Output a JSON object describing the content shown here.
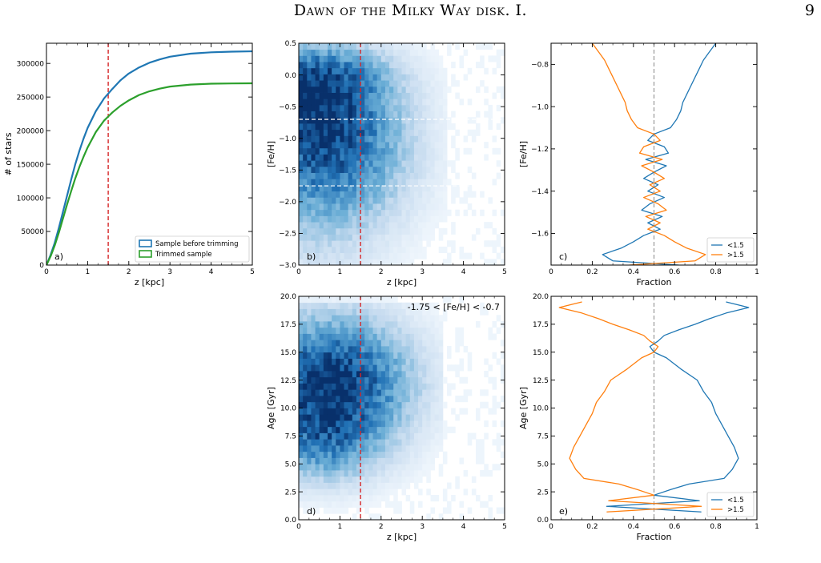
{
  "header": {
    "title": "Dawn of the Milky Way disk. I.",
    "page_number": "9"
  },
  "chart_data": [
    {
      "id": "a",
      "type": "line",
      "panel_label": "a)",
      "xlabel": "z [kpc]",
      "ylabel": "# of stars",
      "xlim": [
        0,
        5
      ],
      "ylim": [
        0,
        330000
      ],
      "xticks": [
        0,
        1,
        2,
        3,
        4,
        5
      ],
      "yticks": [
        0,
        50000,
        100000,
        150000,
        200000,
        250000,
        300000
      ],
      "ytick_labels": [
        "0",
        "50000",
        "100000",
        "150000",
        "200000",
        "250000",
        "300000"
      ],
      "legend_position": "lower-right",
      "series": [
        {
          "name": "Sample before trimming",
          "color": "#1f77b4",
          "x": [
            0,
            0.1,
            0.2,
            0.3,
            0.4,
            0.5,
            0.6,
            0.7,
            0.8,
            0.9,
            1.0,
            1.2,
            1.4,
            1.5,
            1.6,
            1.8,
            2.0,
            2.25,
            2.5,
            2.75,
            3.0,
            3.5,
            4.0,
            4.5,
            5.0
          ],
          "y": [
            0,
            15000,
            33000,
            55000,
            79000,
            103000,
            127000,
            150000,
            170000,
            188000,
            204000,
            229000,
            248000,
            255000,
            262000,
            275000,
            285000,
            294000,
            301000,
            306000,
            310000,
            314500,
            316500,
            317500,
            318000
          ]
        },
        {
          "name": "Trimmed sample",
          "color": "#2ca02c",
          "x": [
            0,
            0.1,
            0.2,
            0.3,
            0.4,
            0.5,
            0.6,
            0.7,
            0.8,
            0.9,
            1.0,
            1.2,
            1.4,
            1.5,
            1.6,
            1.8,
            2.0,
            2.25,
            2.5,
            2.75,
            3.0,
            3.5,
            4.0,
            4.5,
            5.0
          ],
          "y": [
            0,
            13000,
            29000,
            48000,
            69000,
            90000,
            110000,
            129000,
            146000,
            161000,
            175000,
            198000,
            215000,
            221000,
            227000,
            237000,
            245000,
            253000,
            258500,
            262500,
            265500,
            268500,
            269800,
            270200,
            270400
          ]
        }
      ],
      "vlines": [
        {
          "x": 1.5,
          "color": "#d62728",
          "style": "dashed"
        }
      ]
    },
    {
      "id": "b",
      "type": "heatmap",
      "panel_label": "b)",
      "xlabel": "z [kpc]",
      "ylabel": "[Fe/H]",
      "xlim": [
        0,
        5
      ],
      "ylim": [
        -3.0,
        0.5
      ],
      "xticks": [
        0,
        1,
        2,
        3,
        4,
        5
      ],
      "yticks": [
        -3.0,
        -2.5,
        -2.0,
        -1.5,
        -1.0,
        -0.5,
        0.0,
        0.5
      ],
      "ytick_labels": [
        "−3.0",
        "−2.5",
        "−2.0",
        "−1.5",
        "−1.0",
        "−0.5",
        "0.0",
        "0.5"
      ],
      "colormap": "Blues",
      "density_model": {
        "peak_x": 0.35,
        "peak_y": -0.15,
        "note_x_extent": 3.6
      },
      "vlines": [
        {
          "x": 1.5,
          "color": "#d62728",
          "style": "dashed"
        }
      ],
      "hlines": [
        {
          "y": -0.7,
          "color": "#ffffff",
          "style": "dashed"
        },
        {
          "y": -1.75,
          "color": "#ffffff",
          "style": "dashed"
        }
      ]
    },
    {
      "id": "c",
      "type": "line",
      "panel_label": "c)",
      "xlabel": "Fraction",
      "ylabel": "[Fe/H]",
      "xlim": [
        0.0,
        1.0
      ],
      "ylim": [
        -1.75,
        -0.7
      ],
      "xticks": [
        0.0,
        0.2,
        0.4,
        0.6,
        0.8,
        1.0
      ],
      "yticks": [
        -1.6,
        -1.4,
        -1.2,
        -1.0,
        -0.8
      ],
      "ytick_labels": [
        "−1.6",
        "−1.4",
        "−1.2",
        "−1.0",
        "−0.8"
      ],
      "legend_position": "lower-right",
      "series": [
        {
          "name": "<1.5",
          "color": "#1f77b4",
          "y": [
            -0.7,
            -0.74,
            -0.78,
            -0.82,
            -0.86,
            -0.9,
            -0.94,
            -0.98,
            -1.02,
            -1.06,
            -1.1,
            -1.13,
            -1.16,
            -1.19,
            -1.22,
            -1.25,
            -1.28,
            -1.31,
            -1.34,
            -1.37,
            -1.4,
            -1.43,
            -1.46,
            -1.49,
            -1.52,
            -1.55,
            -1.58,
            -1.61,
            -1.64,
            -1.67,
            -1.7,
            -1.73,
            -1.75
          ],
          "values": [
            0.8,
            0.77,
            0.74,
            0.72,
            0.7,
            0.68,
            0.66,
            0.64,
            0.63,
            0.61,
            0.58,
            0.5,
            0.47,
            0.55,
            0.57,
            0.46,
            0.56,
            0.5,
            0.45,
            0.52,
            0.47,
            0.55,
            0.48,
            0.44,
            0.54,
            0.47,
            0.53,
            0.45,
            0.4,
            0.34,
            0.25,
            0.3,
            0.62
          ]
        },
        {
          "name": ">1.5",
          "color": "#ff7f0e",
          "y": [
            -0.7,
            -0.74,
            -0.78,
            -0.82,
            -0.86,
            -0.9,
            -0.94,
            -0.98,
            -1.02,
            -1.06,
            -1.1,
            -1.13,
            -1.16,
            -1.19,
            -1.22,
            -1.25,
            -1.28,
            -1.31,
            -1.34,
            -1.37,
            -1.4,
            -1.43,
            -1.46,
            -1.49,
            -1.52,
            -1.55,
            -1.58,
            -1.61,
            -1.64,
            -1.67,
            -1.7,
            -1.73,
            -1.75
          ],
          "values": [
            0.2,
            0.23,
            0.26,
            0.28,
            0.3,
            0.32,
            0.34,
            0.36,
            0.37,
            0.39,
            0.42,
            0.5,
            0.53,
            0.45,
            0.43,
            0.54,
            0.44,
            0.5,
            0.55,
            0.48,
            0.53,
            0.45,
            0.52,
            0.56,
            0.46,
            0.53,
            0.47,
            0.55,
            0.6,
            0.66,
            0.75,
            0.7,
            0.38
          ]
        }
      ],
      "vlines": [
        {
          "x": 0.5,
          "color": "#999999",
          "style": "dashed"
        }
      ]
    },
    {
      "id": "d",
      "type": "heatmap",
      "panel_label": "d)",
      "annotation": "-1.75 < [Fe/H] < -0.7",
      "xlabel": "z [kpc]",
      "ylabel": "Age [Gyr]",
      "xlim": [
        0,
        5
      ],
      "ylim": [
        0.0,
        20.0
      ],
      "xticks": [
        0,
        1,
        2,
        3,
        4,
        5
      ],
      "yticks": [
        0.0,
        2.5,
        5.0,
        7.5,
        10.0,
        12.5,
        15.0,
        17.5,
        20.0
      ],
      "ytick_labels": [
        "0.0",
        "2.5",
        "5.0",
        "7.5",
        "10.0",
        "12.5",
        "15.0",
        "17.5",
        "20.0"
      ],
      "colormap": "Blues",
      "density_model": {
        "peak_x": 0.8,
        "peak_y": 12.3
      },
      "vlines": [
        {
          "x": 1.5,
          "color": "#d62728",
          "style": "dashed"
        }
      ]
    },
    {
      "id": "e",
      "type": "line",
      "panel_label": "e)",
      "xlabel": "Fraction",
      "ylabel": "Age [Gyr]",
      "xlim": [
        0.0,
        1.0
      ],
      "ylim": [
        0.0,
        20.0
      ],
      "xticks": [
        0.0,
        0.2,
        0.4,
        0.6,
        0.8,
        1.0
      ],
      "yticks": [
        0.0,
        2.5,
        5.0,
        7.5,
        10.0,
        12.5,
        15.0,
        17.5,
        20.0
      ],
      "ytick_labels": [
        "0.0",
        "2.5",
        "5.0",
        "7.5",
        "10.0",
        "12.5",
        "15.0",
        "17.5",
        "20.0"
      ],
      "legend_position": "lower-right",
      "series": [
        {
          "name": "<1.5",
          "color": "#1f77b4",
          "y": [
            0.7,
            1.2,
            1.7,
            2.2,
            2.7,
            3.2,
            3.7,
            4.5,
            5.5,
            6.5,
            7.5,
            8.5,
            9.5,
            10.5,
            11.5,
            12.5,
            13.5,
            14.5,
            15.0,
            15.5,
            16.0,
            16.5,
            17.0,
            17.5,
            18.0,
            18.5,
            19.0,
            19.5
          ],
          "values": [
            0.73,
            0.27,
            0.72,
            0.5,
            0.58,
            0.67,
            0.84,
            0.88,
            0.91,
            0.89,
            0.86,
            0.83,
            0.8,
            0.78,
            0.74,
            0.71,
            0.63,
            0.56,
            0.5,
            0.48,
            0.52,
            0.55,
            0.62,
            0.7,
            0.77,
            0.85,
            0.96,
            0.85
          ]
        },
        {
          "name": ">1.5",
          "color": "#ff7f0e",
          "y": [
            0.7,
            1.2,
            1.7,
            2.2,
            2.7,
            3.2,
            3.7,
            4.5,
            5.5,
            6.5,
            7.5,
            8.5,
            9.5,
            10.5,
            11.5,
            12.5,
            13.5,
            14.5,
            15.0,
            15.5,
            16.0,
            16.5,
            17.0,
            17.5,
            18.0,
            18.5,
            19.0,
            19.5
          ],
          "values": [
            0.27,
            0.73,
            0.28,
            0.5,
            0.42,
            0.33,
            0.16,
            0.12,
            0.09,
            0.11,
            0.14,
            0.17,
            0.2,
            0.22,
            0.26,
            0.29,
            0.37,
            0.44,
            0.5,
            0.52,
            0.48,
            0.45,
            0.38,
            0.3,
            0.23,
            0.15,
            0.04,
            0.15
          ]
        }
      ],
      "vlines": [
        {
          "x": 0.5,
          "color": "#999999",
          "style": "dashed"
        }
      ]
    }
  ]
}
